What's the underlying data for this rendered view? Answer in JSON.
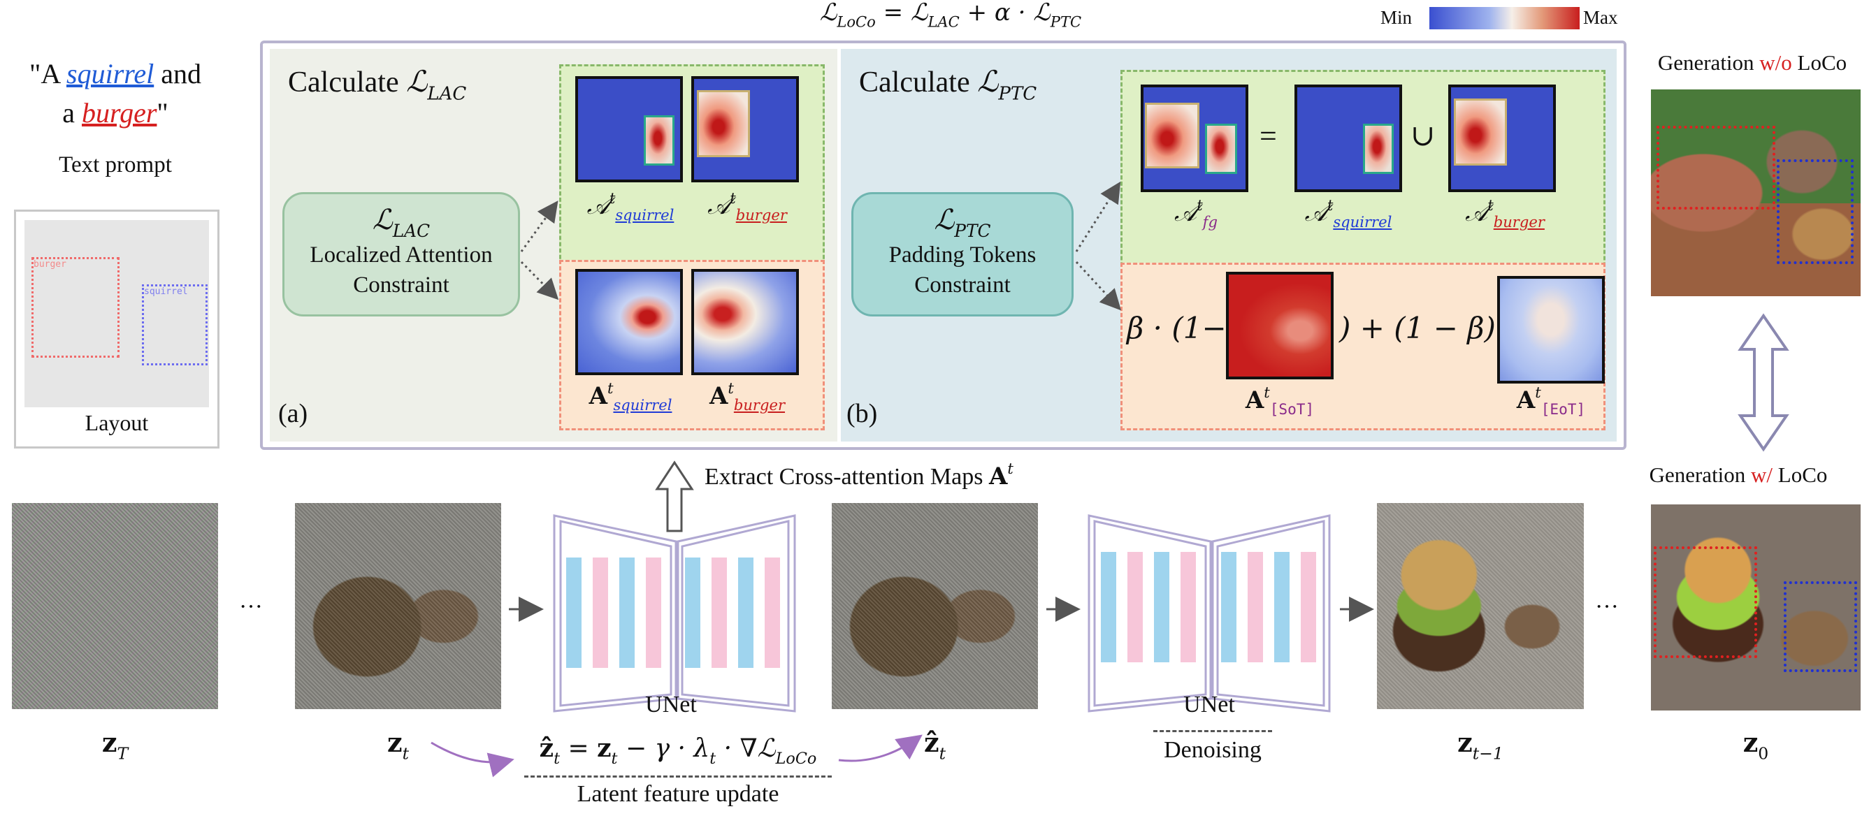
{
  "formula_top": "ℒLoCo = ℒLAC + α · ℒPTC",
  "colorbar": {
    "min_label": "Min",
    "max_label": "Max",
    "colors": [
      "#3a4fd0",
      "#ffffff",
      "#c81e1e"
    ]
  },
  "prompt": {
    "line1_a": "\"A ",
    "line1_word": "squirrel",
    "line1_b": " and",
    "line2_a": "a ",
    "line2_word": "burger",
    "line2_b": "\"",
    "caption": "Text prompt"
  },
  "layout_panel": {
    "caption": "Layout",
    "box1_label": "burger",
    "box2_label": "squirrel"
  },
  "panel_a": {
    "title": "Calculate ℒLAC",
    "constraint_symbol": "ℒLAC",
    "constraint_line1": "Localized Attention",
    "constraint_line2": "Constraint",
    "tag": "(a)",
    "top_labels": [
      "𝒜tsquirrel",
      "𝒜tburger"
    ],
    "bottom_labels": [
      "Atsquirrel",
      "Atburger"
    ]
  },
  "panel_b": {
    "title": "Calculate ℒPTC",
    "constraint_symbol": "ℒPTC",
    "constraint_line1": "Padding Tokens",
    "constraint_line2": "Constraint",
    "tag": "(b)",
    "top_labels": [
      "𝒜tfg",
      "𝒜tsquirrel",
      "𝒜tburger"
    ],
    "equals": "=",
    "union": "∪",
    "beta_a": "β · (1−",
    "beta_b": ") + (1 − β) ·",
    "bottom_labels": [
      "At[SoT]",
      "At[EoT]"
    ]
  },
  "extract_label": "Extract Cross-attention Maps At",
  "ellipsis": "···",
  "unet_label": "UNet",
  "denoising_label": "Denoising",
  "latent_formula": "ẑt = zt − γ · λt · ∇ℒLoCo",
  "latent_caption": "Latent feature update",
  "latent_labels": {
    "zT": "zT",
    "zt": "zt",
    "zhat": "ẑt",
    "zt1": "zt−1",
    "z0": "z0"
  },
  "gen_wo": {
    "prefix": "Generation ",
    "mid": "w/o",
    "suffix": " LoCo"
  },
  "gen_w": {
    "prefix": "Generation ",
    "mid": "w/",
    "suffix": " LoCo"
  }
}
